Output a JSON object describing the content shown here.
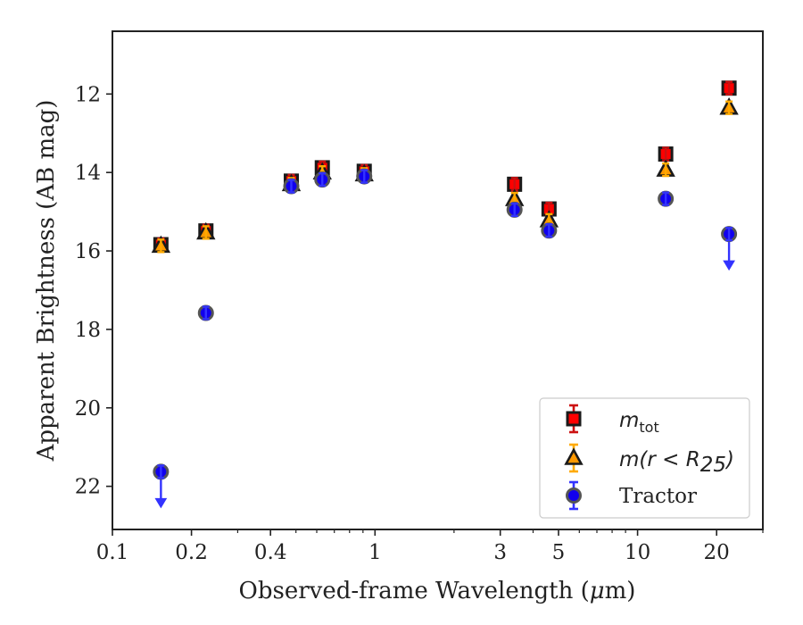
{
  "chart_data": {
    "type": "scatter",
    "xlabel_parts": [
      "Observed-frame Wavelength (",
      "μ",
      "m)"
    ],
    "ylabel": "Apparent Brightness (AB mag)",
    "xscale": "log",
    "xlim": [
      0.1,
      30
    ],
    "ylim": [
      23.1,
      10.4
    ],
    "y_inverted": true,
    "grid": false,
    "x_ticks": [
      0.1,
      0.2,
      0.4,
      1,
      3,
      5,
      10,
      20
    ],
    "x_tick_labels": [
      "0.1",
      "0.2",
      "0.4",
      "1",
      "3",
      "5",
      "10",
      "20"
    ],
    "y_ticks": [
      12,
      14,
      16,
      18,
      20,
      22
    ],
    "y_tick_labels": [
      "12",
      "14",
      "16",
      "18",
      "20",
      "22"
    ],
    "legend_position": "lower-right",
    "series": [
      {
        "key": "mtot",
        "name_main": "m",
        "name_sub": "tot",
        "name_rest": "",
        "marker": "square",
        "color": "#ff0000",
        "errcolor": "#cc1111",
        "points": [
          {
            "x": 0.153,
            "y": 15.84
          },
          {
            "x": 0.227,
            "y": 15.49
          },
          {
            "x": 0.48,
            "y": 14.22
          },
          {
            "x": 0.63,
            "y": 13.88
          },
          {
            "x": 0.91,
            "y": 13.97
          },
          {
            "x": 3.4,
            "y": 14.3
          },
          {
            "x": 4.6,
            "y": 14.93
          },
          {
            "x": 12.8,
            "y": 13.53
          },
          {
            "x": 22.3,
            "y": 11.85
          }
        ]
      },
      {
        "key": "mr25",
        "name_main": "m(r < R",
        "name_sub": "25",
        "name_rest": ")",
        "marker": "triangle",
        "color": "#ff9900",
        "errcolor": "#ffaa00",
        "points": [
          {
            "x": 0.153,
            "y": 15.87
          },
          {
            "x": 0.227,
            "y": 15.53
          },
          {
            "x": 0.48,
            "y": 14.3
          },
          {
            "x": 0.63,
            "y": 14.0
          },
          {
            "x": 0.91,
            "y": 14.05
          },
          {
            "x": 3.4,
            "y": 14.68
          },
          {
            "x": 4.6,
            "y": 15.22
          },
          {
            "x": 12.8,
            "y": 13.93
          },
          {
            "x": 22.3,
            "y": 12.35
          }
        ]
      },
      {
        "key": "tractor",
        "name_main": "Tractor",
        "name_sub": "",
        "name_rest": "",
        "marker": "circle",
        "color": "#1100ee",
        "errcolor": "#3333ff",
        "points": [
          {
            "x": 0.153,
            "y": 21.63,
            "upper_limit": true
          },
          {
            "x": 0.227,
            "y": 17.58
          },
          {
            "x": 0.48,
            "y": 14.35
          },
          {
            "x": 0.63,
            "y": 14.18
          },
          {
            "x": 0.91,
            "y": 14.1
          },
          {
            "x": 3.4,
            "y": 14.95
          },
          {
            "x": 4.6,
            "y": 15.48
          },
          {
            "x": 12.8,
            "y": 14.67
          },
          {
            "x": 22.3,
            "y": 15.57,
            "upper_limit": true
          }
        ]
      }
    ]
  }
}
